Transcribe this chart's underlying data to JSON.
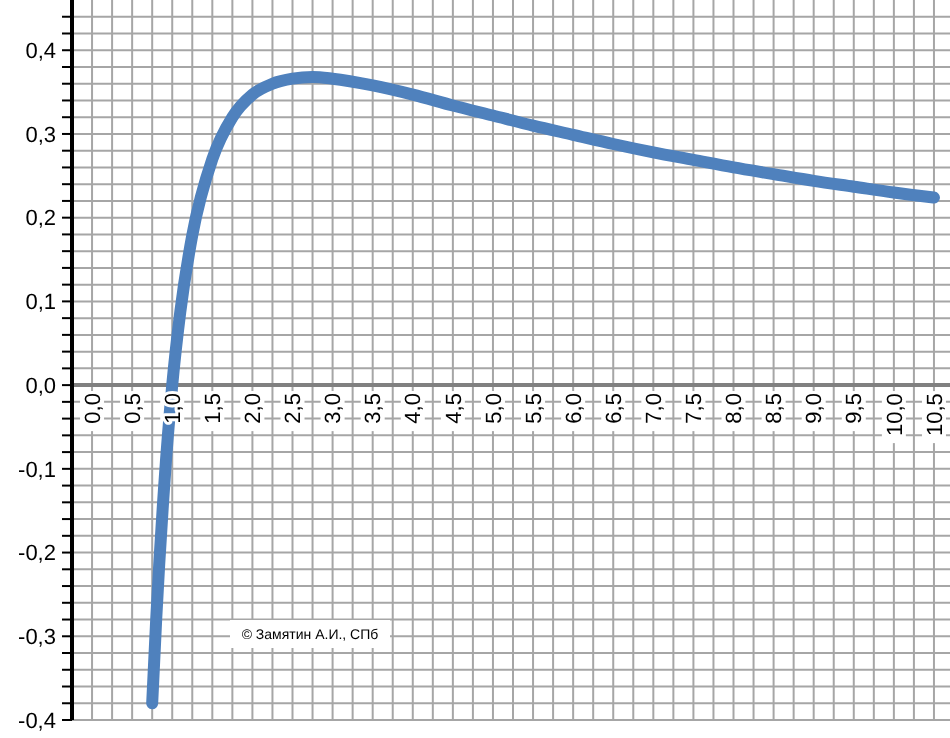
{
  "chart_data": {
    "type": "line",
    "x": [
      0.75,
      0.8,
      0.9,
      1.0,
      1.1,
      1.25,
      1.5,
      1.75,
      2.0,
      2.25,
      2.5,
      2.75,
      3.0,
      3.5,
      4.0,
      4.5,
      5.0,
      5.5,
      6.0,
      6.5,
      7.0,
      7.5,
      8.0,
      8.5,
      9.0,
      9.5,
      10.0,
      10.5
    ],
    "series": [
      {
        "color": "#4f81bd",
        "values": [
          -0.38,
          -0.28,
          -0.12,
          0.0,
          0.087,
          0.179,
          0.27,
          0.32,
          0.347,
          0.36,
          0.366,
          0.368,
          0.366,
          0.358,
          0.347,
          0.334,
          0.322,
          0.31,
          0.299,
          0.288,
          0.278,
          0.269,
          0.26,
          0.252,
          0.244,
          0.237,
          0.23,
          0.224
        ]
      }
    ],
    "xlim": [
      -0.25,
      10.7
    ],
    "ylim": [
      -0.4,
      0.46
    ],
    "xticks": [
      {
        "value": 0,
        "label": "0,0"
      },
      {
        "value": 0.25,
        "label": null
      },
      {
        "value": 0.5,
        "label": "0,5"
      },
      {
        "value": 0.75,
        "label": null
      },
      {
        "value": 1,
        "label": "1,0"
      },
      {
        "value": 1.25,
        "label": null
      },
      {
        "value": 1.5,
        "label": "1,5"
      },
      {
        "value": 1.75,
        "label": null
      },
      {
        "value": 2,
        "label": "2,0"
      },
      {
        "value": 2.25,
        "label": null
      },
      {
        "value": 2.5,
        "label": "2,5"
      },
      {
        "value": 2.75,
        "label": null
      },
      {
        "value": 3,
        "label": "3,0"
      },
      {
        "value": 3.25,
        "label": null
      },
      {
        "value": 3.5,
        "label": "3,5"
      },
      {
        "value": 3.75,
        "label": null
      },
      {
        "value": 4,
        "label": "4,0"
      },
      {
        "value": 4.25,
        "label": null
      },
      {
        "value": 4.5,
        "label": "4,5"
      },
      {
        "value": 4.75,
        "label": null
      },
      {
        "value": 5,
        "label": "5,0"
      },
      {
        "value": 5.25,
        "label": null
      },
      {
        "value": 5.5,
        "label": "5,5"
      },
      {
        "value": 5.75,
        "label": null
      },
      {
        "value": 6,
        "label": "6,0"
      },
      {
        "value": 6.25,
        "label": null
      },
      {
        "value": 6.5,
        "label": "6,5"
      },
      {
        "value": 6.75,
        "label": null
      },
      {
        "value": 7,
        "label": "7,0"
      },
      {
        "value": 7.25,
        "label": null
      },
      {
        "value": 7.5,
        "label": "7,5"
      },
      {
        "value": 7.75,
        "label": null
      },
      {
        "value": 8,
        "label": "8,0"
      },
      {
        "value": 8.25,
        "label": null
      },
      {
        "value": 8.5,
        "label": "8,5"
      },
      {
        "value": 8.75,
        "label": null
      },
      {
        "value": 9,
        "label": "9,0"
      },
      {
        "value": 9.25,
        "label": null
      },
      {
        "value": 9.5,
        "label": "9,5"
      },
      {
        "value": 9.75,
        "label": null
      },
      {
        "value": 10,
        "label": "10,0"
      },
      {
        "value": 10.25,
        "label": null
      },
      {
        "value": 10.5,
        "label": "10,5"
      }
    ],
    "yticks": [
      {
        "value": -0.4,
        "label": "-0,4"
      },
      {
        "value": -0.38,
        "label": null
      },
      {
        "value": -0.36,
        "label": null
      },
      {
        "value": -0.34,
        "label": null
      },
      {
        "value": -0.32,
        "label": null
      },
      {
        "value": -0.3,
        "label": "-0,3"
      },
      {
        "value": -0.28,
        "label": null
      },
      {
        "value": -0.26,
        "label": null
      },
      {
        "value": -0.24,
        "label": null
      },
      {
        "value": -0.22,
        "label": null
      },
      {
        "value": -0.2,
        "label": "-0,2"
      },
      {
        "value": -0.18,
        "label": null
      },
      {
        "value": -0.16,
        "label": null
      },
      {
        "value": -0.14,
        "label": null
      },
      {
        "value": -0.12,
        "label": null
      },
      {
        "value": -0.1,
        "label": "-0,1"
      },
      {
        "value": -0.08,
        "label": null
      },
      {
        "value": -0.06,
        "label": null
      },
      {
        "value": -0.04,
        "label": null
      },
      {
        "value": -0.02,
        "label": null
      },
      {
        "value": 0,
        "label": "0,0"
      },
      {
        "value": 0.02,
        "label": null
      },
      {
        "value": 0.04,
        "label": null
      },
      {
        "value": 0.06,
        "label": null
      },
      {
        "value": 0.08,
        "label": null
      },
      {
        "value": 0.1,
        "label": "0,1"
      },
      {
        "value": 0.12,
        "label": null
      },
      {
        "value": 0.14,
        "label": null
      },
      {
        "value": 0.16,
        "label": null
      },
      {
        "value": 0.18,
        "label": null
      },
      {
        "value": 0.2,
        "label": "0,2"
      },
      {
        "value": 0.22,
        "label": null
      },
      {
        "value": 0.24,
        "label": null
      },
      {
        "value": 0.26,
        "label": null
      },
      {
        "value": 0.28,
        "label": null
      },
      {
        "value": 0.3,
        "label": "0,3"
      },
      {
        "value": 0.32,
        "label": null
      },
      {
        "value": 0.34,
        "label": null
      },
      {
        "value": 0.36,
        "label": null
      },
      {
        "value": 0.38,
        "label": null
      },
      {
        "value": 0.4,
        "label": "0,4"
      },
      {
        "value": 0.42,
        "label": null
      },
      {
        "value": 0.44,
        "label": null
      }
    ],
    "grid": true,
    "marker": "none",
    "line_style": "solid",
    "annotations": [
      "© Замятин А.И., СПб"
    ]
  }
}
